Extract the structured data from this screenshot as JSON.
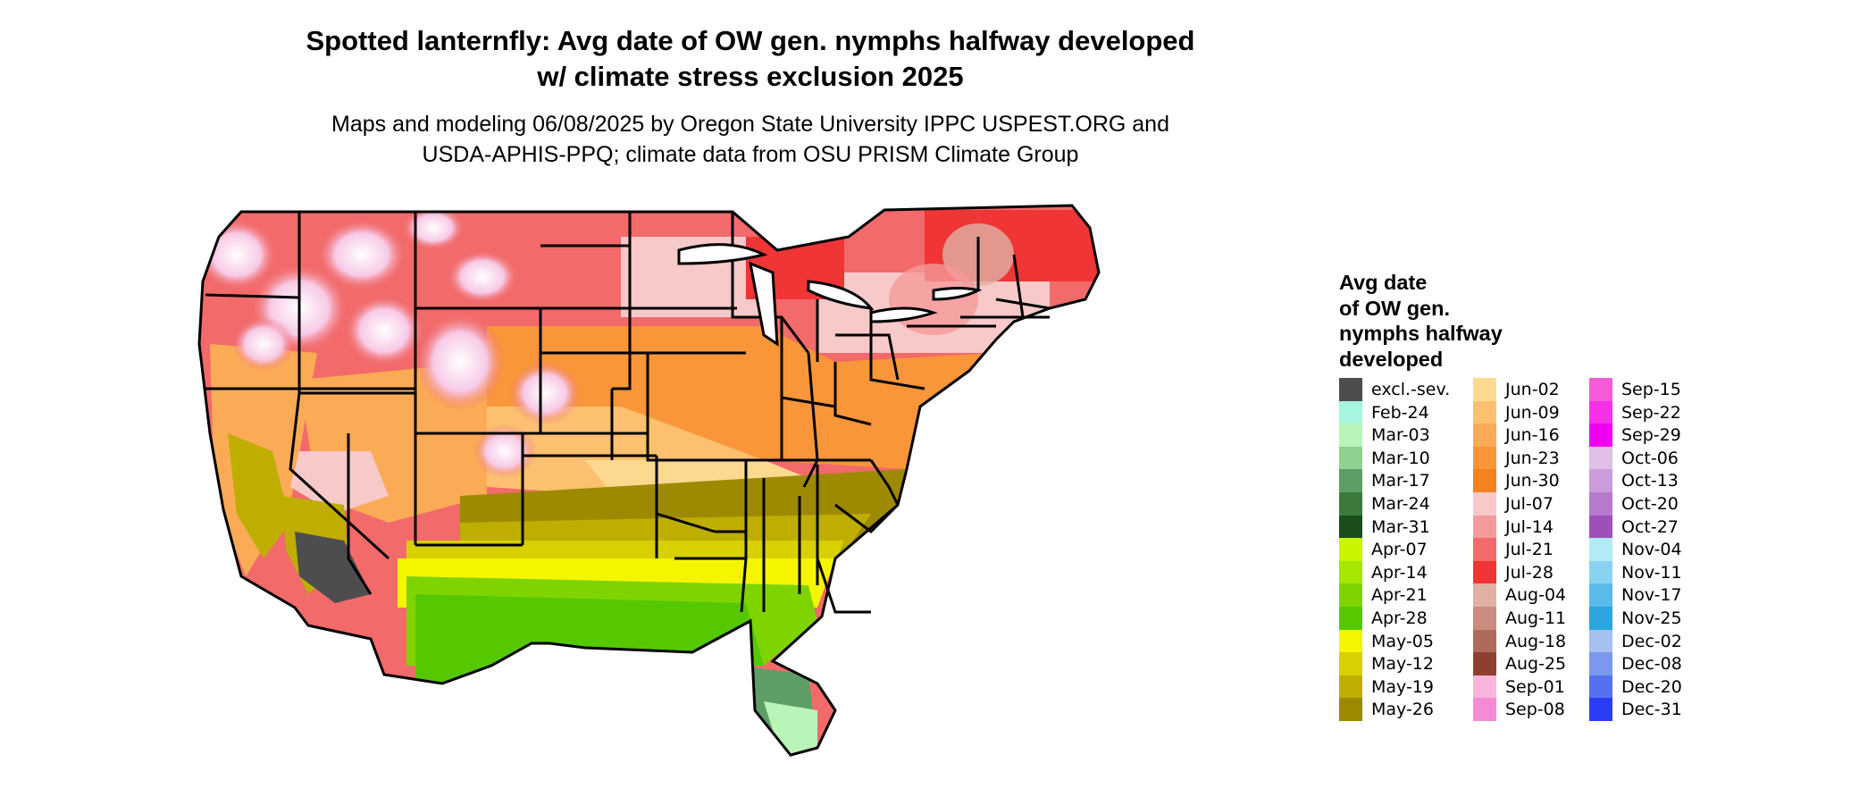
{
  "title_line1": "Spotted lanternfly: Avg date of OW gen. nymphs halfway developed",
  "title_line2": "w/ climate stress exclusion 2025",
  "subtitle_line1": "Maps and modeling 06/08/2025 by Oregon State University IPPC USPEST.ORG and",
  "subtitle_line2": "USDA-APHIS-PPQ; climate data from OSU PRISM Climate Group",
  "legend": {
    "title_lines": [
      "Avg date",
      "of OW gen.",
      "nymphs halfway",
      "developed"
    ],
    "columns": [
      [
        {
          "label": "excl.-sev.",
          "color": "#4d4d4d"
        },
        {
          "label": "Feb-24",
          "color": "#a6f5e0"
        },
        {
          "label": "Mar-03",
          "color": "#b9f5b9"
        },
        {
          "label": "Mar-10",
          "color": "#8fd18f"
        },
        {
          "label": "Mar-17",
          "color": "#5e9e66"
        },
        {
          "label": "Mar-24",
          "color": "#3c7a3c"
        },
        {
          "label": "Mar-31",
          "color": "#1a4d1a"
        },
        {
          "label": "Apr-07",
          "color": "#c8f500"
        },
        {
          "label": "Apr-14",
          "color": "#a6e600"
        },
        {
          "label": "Apr-21",
          "color": "#7fd400"
        },
        {
          "label": "Apr-28",
          "color": "#55c800"
        },
        {
          "label": "May-05",
          "color": "#f5f500"
        },
        {
          "label": "May-12",
          "color": "#d8d000"
        },
        {
          "label": "May-19",
          "color": "#bfae00"
        },
        {
          "label": "May-26",
          "color": "#9e8a00"
        }
      ],
      [
        {
          "label": "Jun-02",
          "color": "#fcd98f"
        },
        {
          "label": "Jun-09",
          "color": "#fcc070"
        },
        {
          "label": "Jun-16",
          "color": "#fbab55"
        },
        {
          "label": "Jun-23",
          "color": "#f9963a"
        },
        {
          "label": "Jun-30",
          "color": "#f5821f"
        },
        {
          "label": "Jul-07",
          "color": "#f7c9c9"
        },
        {
          "label": "Jul-14",
          "color": "#f59a9a"
        },
        {
          "label": "Jul-21",
          "color": "#f26a6a"
        },
        {
          "label": "Jul-28",
          "color": "#ef3535"
        },
        {
          "label": "Aug-04",
          "color": "#e0b0a5"
        },
        {
          "label": "Aug-11",
          "color": "#c98c7e"
        },
        {
          "label": "Aug-18",
          "color": "#b06a5c"
        },
        {
          "label": "Aug-25",
          "color": "#8e4030"
        },
        {
          "label": "Sep-01",
          "color": "#f9b5dc"
        },
        {
          "label": "Sep-08",
          "color": "#f68ad5"
        }
      ],
      [
        {
          "label": "Sep-15",
          "color": "#f55ad8"
        },
        {
          "label": "Sep-22",
          "color": "#f530e6"
        },
        {
          "label": "Sep-29",
          "color": "#f000f0"
        },
        {
          "label": "Oct-06",
          "color": "#e0c0e6"
        },
        {
          "label": "Oct-13",
          "color": "#cc9bd9"
        },
        {
          "label": "Oct-20",
          "color": "#b679cc"
        },
        {
          "label": "Oct-27",
          "color": "#9c50b8"
        },
        {
          "label": "Nov-04",
          "color": "#b3eaf5"
        },
        {
          "label": "Nov-11",
          "color": "#8ad3f0"
        },
        {
          "label": "Nov-17",
          "color": "#5bbbe8"
        },
        {
          "label": "Nov-25",
          "color": "#2aa5de"
        },
        {
          "label": "Dec-02",
          "color": "#a5c0ee"
        },
        {
          "label": "Dec-08",
          "color": "#7b98ee"
        },
        {
          "label": "Dec-20",
          "color": "#5671f0"
        },
        {
          "label": "Dec-31",
          "color": "#2c3cf5"
        }
      ]
    ]
  }
}
